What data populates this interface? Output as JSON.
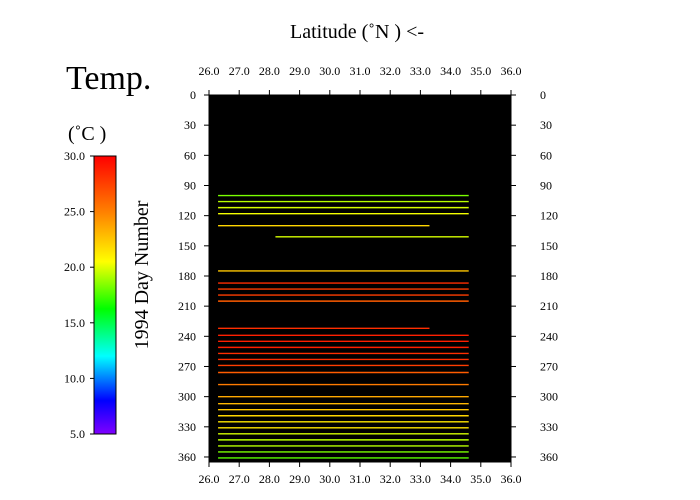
{
  "chart_data": {
    "type": "heatmap",
    "title": "Temp.",
    "top_axis_label": "Latitude  (˚N )  <-",
    "ylabel": "1994  Day Number",
    "colorbar": {
      "unit": "(˚C )",
      "min": 5.0,
      "max": 30.0,
      "ticks": [
        "30.0",
        "25.0",
        "20.0",
        "15.0",
        "10.0",
        "5.0"
      ],
      "colors": [
        "#ff0000",
        "#ff8000",
        "#ffff00",
        "#00ff00",
        "#00ffff",
        "#0000ff",
        "#8000ff"
      ]
    },
    "xlim": [
      26.0,
      36.0
    ],
    "ylim": [
      0,
      365
    ],
    "x_ticks": [
      "26.0",
      "27.0",
      "28.0",
      "29.0",
      "30.0",
      "31.0",
      "32.0",
      "33.0",
      "34.0",
      "35.0",
      "36.0"
    ],
    "y_ticks": [
      "0",
      "30",
      "60",
      "90",
      "120",
      "150",
      "180",
      "210",
      "240",
      "270",
      "300",
      "330",
      "360"
    ],
    "background": "#000000",
    "tracks": [
      {
        "day": 100,
        "x_start": 26.3,
        "x_end": 34.6,
        "temp": 19.5
      },
      {
        "day": 106,
        "x_start": 26.3,
        "x_end": 34.6,
        "temp": 20.5
      },
      {
        "day": 112,
        "x_start": 26.3,
        "x_end": 34.6,
        "temp": 21.0
      },
      {
        "day": 118,
        "x_start": 26.3,
        "x_end": 34.6,
        "temp": 21.5
      },
      {
        "day": 130,
        "x_start": 26.3,
        "x_end": 33.3,
        "temp": 23.0
      },
      {
        "day": 141,
        "x_start": 28.2,
        "x_end": 34.6,
        "temp": 21.0
      },
      {
        "day": 175,
        "x_start": 26.3,
        "x_end": 34.6,
        "temp": 23.5
      },
      {
        "day": 187,
        "x_start": 26.3,
        "x_end": 34.6,
        "temp": 28.5
      },
      {
        "day": 193,
        "x_start": 26.3,
        "x_end": 34.6,
        "temp": 28.0
      },
      {
        "day": 199,
        "x_start": 26.3,
        "x_end": 34.6,
        "temp": 28.0
      },
      {
        "day": 205,
        "x_start": 26.3,
        "x_end": 34.6,
        "temp": 27.0
      },
      {
        "day": 232,
        "x_start": 26.3,
        "x_end": 33.3,
        "temp": 28.5
      },
      {
        "day": 239,
        "x_start": 26.3,
        "x_end": 34.6,
        "temp": 29.0
      },
      {
        "day": 245,
        "x_start": 26.3,
        "x_end": 34.6,
        "temp": 29.0
      },
      {
        "day": 251,
        "x_start": 26.3,
        "x_end": 34.6,
        "temp": 29.0
      },
      {
        "day": 257,
        "x_start": 26.3,
        "x_end": 34.6,
        "temp": 28.5
      },
      {
        "day": 263,
        "x_start": 26.3,
        "x_end": 34.6,
        "temp": 28.5
      },
      {
        "day": 269,
        "x_start": 26.3,
        "x_end": 34.6,
        "temp": 28.0
      },
      {
        "day": 276,
        "x_start": 26.3,
        "x_end": 34.6,
        "temp": 27.0
      },
      {
        "day": 288,
        "x_start": 26.3,
        "x_end": 34.6,
        "temp": 26.0
      },
      {
        "day": 300,
        "x_start": 26.3,
        "x_end": 34.6,
        "temp": 24.5
      },
      {
        "day": 307,
        "x_start": 26.3,
        "x_end": 34.6,
        "temp": 24.0
      },
      {
        "day": 313,
        "x_start": 26.3,
        "x_end": 34.6,
        "temp": 23.5
      },
      {
        "day": 319,
        "x_start": 26.3,
        "x_end": 34.6,
        "temp": 23.0
      },
      {
        "day": 325,
        "x_start": 26.3,
        "x_end": 34.6,
        "temp": 22.5
      },
      {
        "day": 331,
        "x_start": 26.3,
        "x_end": 34.6,
        "temp": 22.5
      },
      {
        "day": 337,
        "x_start": 26.3,
        "x_end": 34.6,
        "temp": 21.0
      },
      {
        "day": 343,
        "x_start": 26.3,
        "x_end": 34.6,
        "temp": 20.5
      },
      {
        "day": 349,
        "x_start": 26.3,
        "x_end": 34.6,
        "temp": 20.5
      },
      {
        "day": 355,
        "x_start": 26.3,
        "x_end": 34.6,
        "temp": 19.5
      },
      {
        "day": 361,
        "x_start": 26.3,
        "x_end": 34.6,
        "temp": 19.0
      }
    ]
  }
}
